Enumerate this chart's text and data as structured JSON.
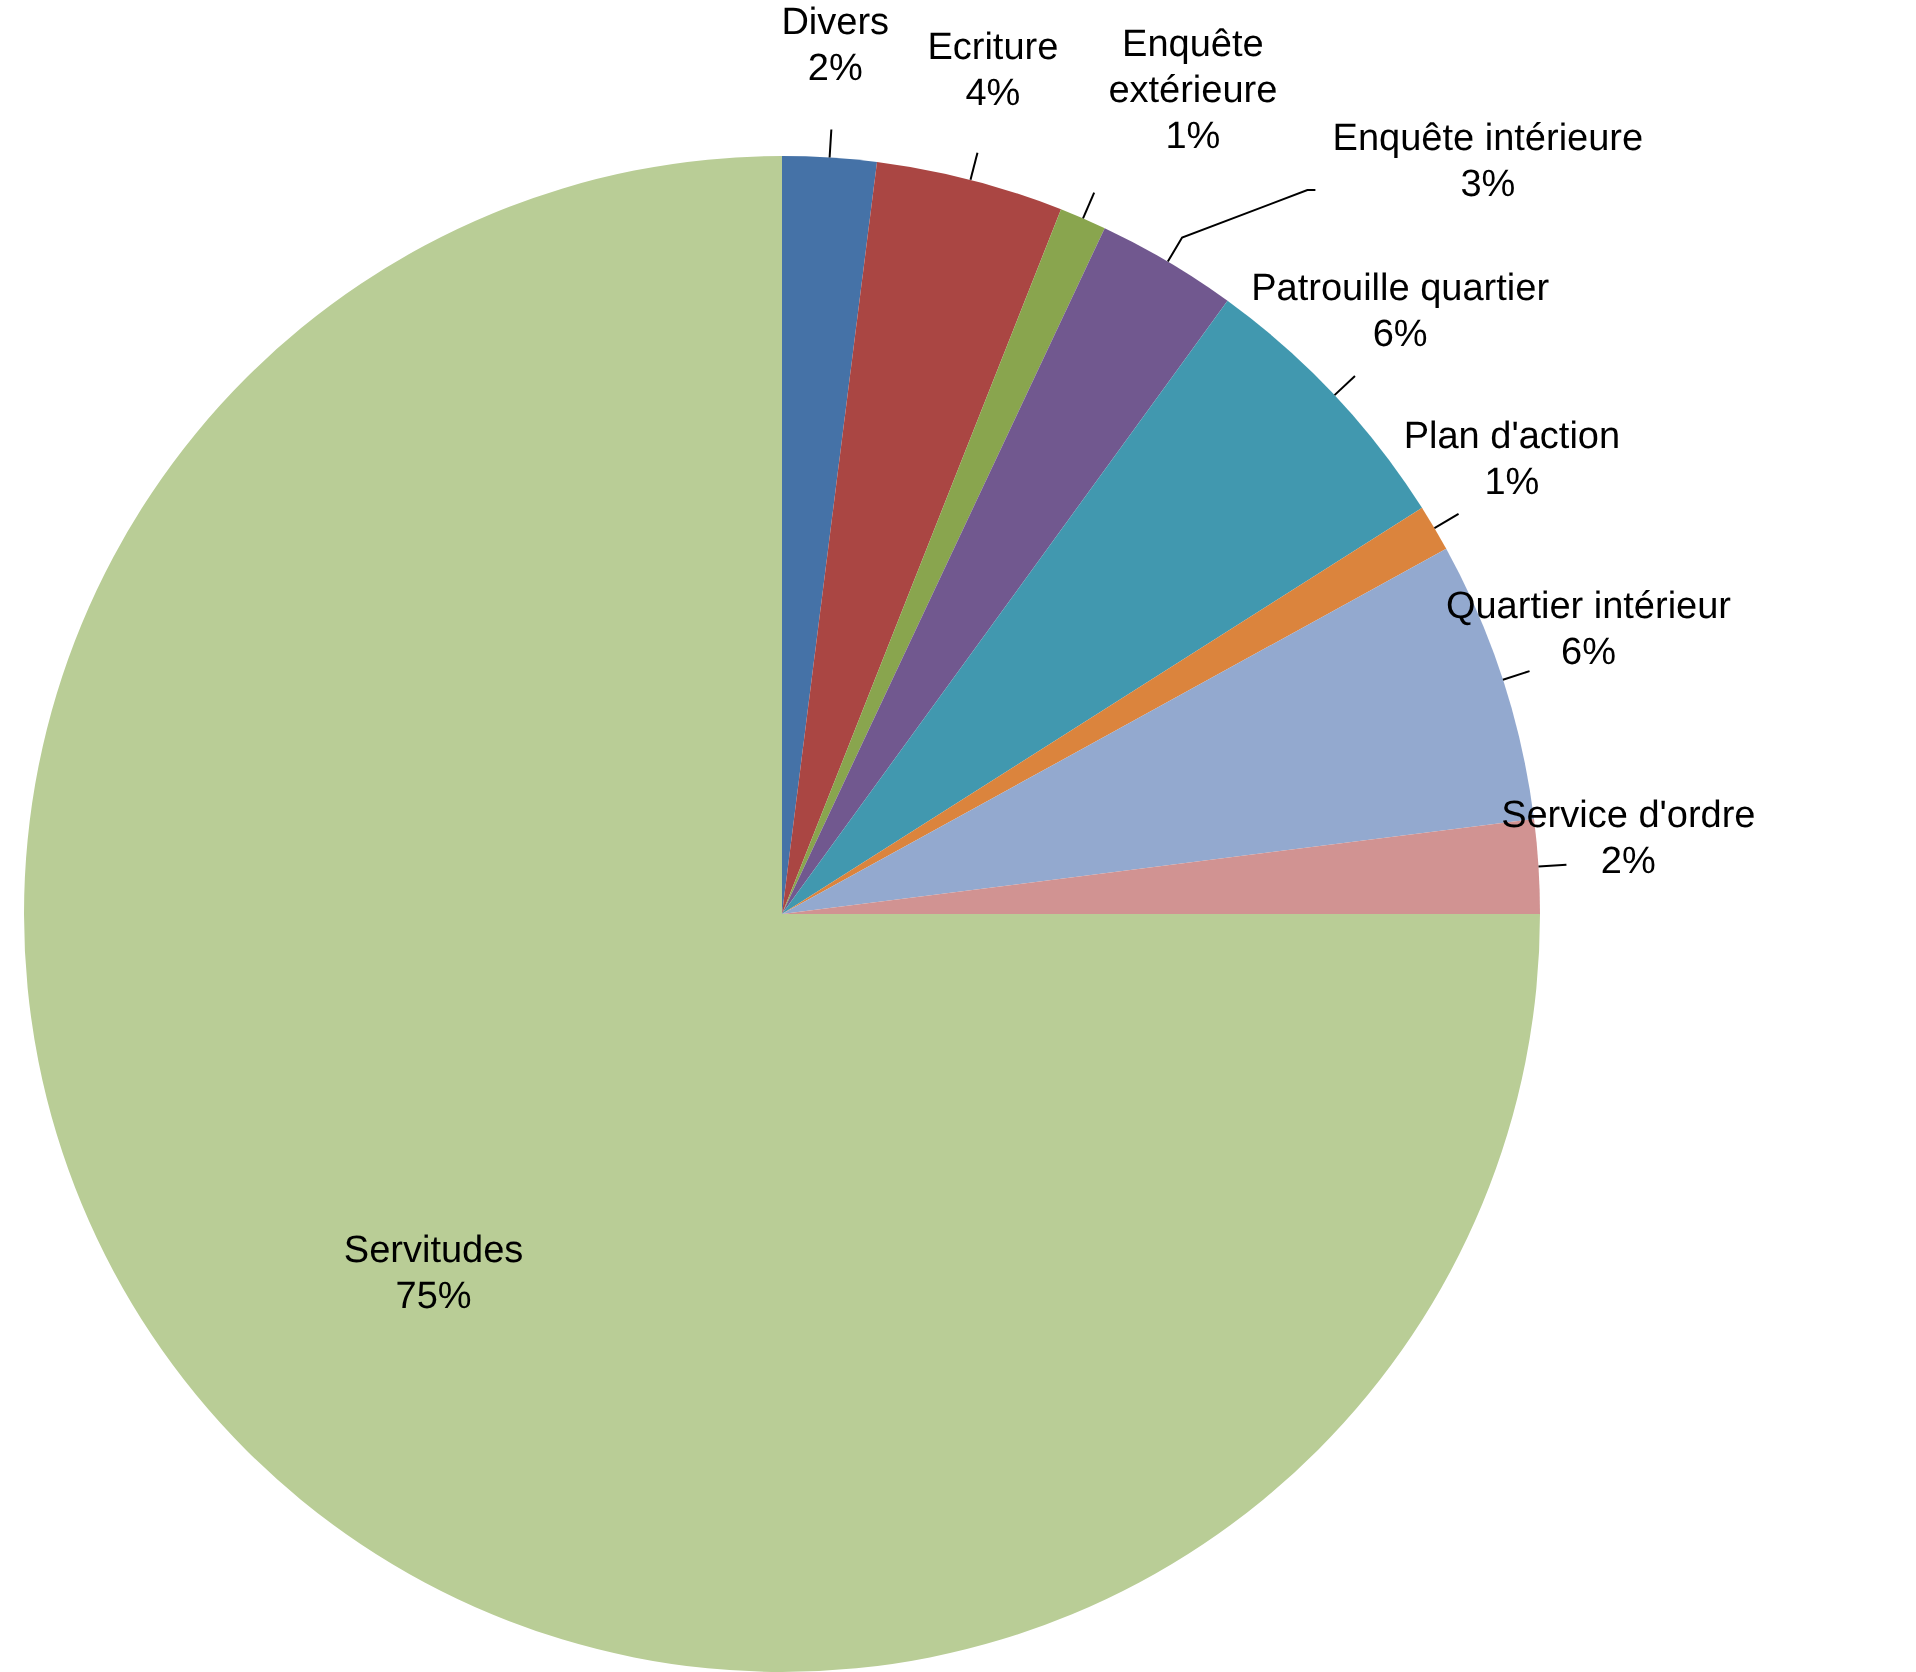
{
  "chart_data": {
    "type": "pie",
    "categories": [
      "Divers",
      "Ecriture",
      "Enquête extérieure",
      "Enquête intérieure",
      "Patrouille quartier",
      "Plan d'action",
      "Quartier intérieur",
      "Service d'ordre",
      "Servitudes"
    ],
    "values": [
      2,
      4,
      1,
      3,
      6,
      1,
      6,
      2,
      75
    ],
    "value_labels": [
      "2%",
      "4%",
      "1%",
      "3%",
      "6%",
      "1%",
      "6%",
      "2%",
      "75%"
    ],
    "colors": [
      "#4572a7",
      "#aa4643",
      "#89a54e",
      "#71588f",
      "#4198af",
      "#db843d",
      "#93a9cf",
      "#d19392",
      "#b9cd96"
    ],
    "legend": false
  }
}
